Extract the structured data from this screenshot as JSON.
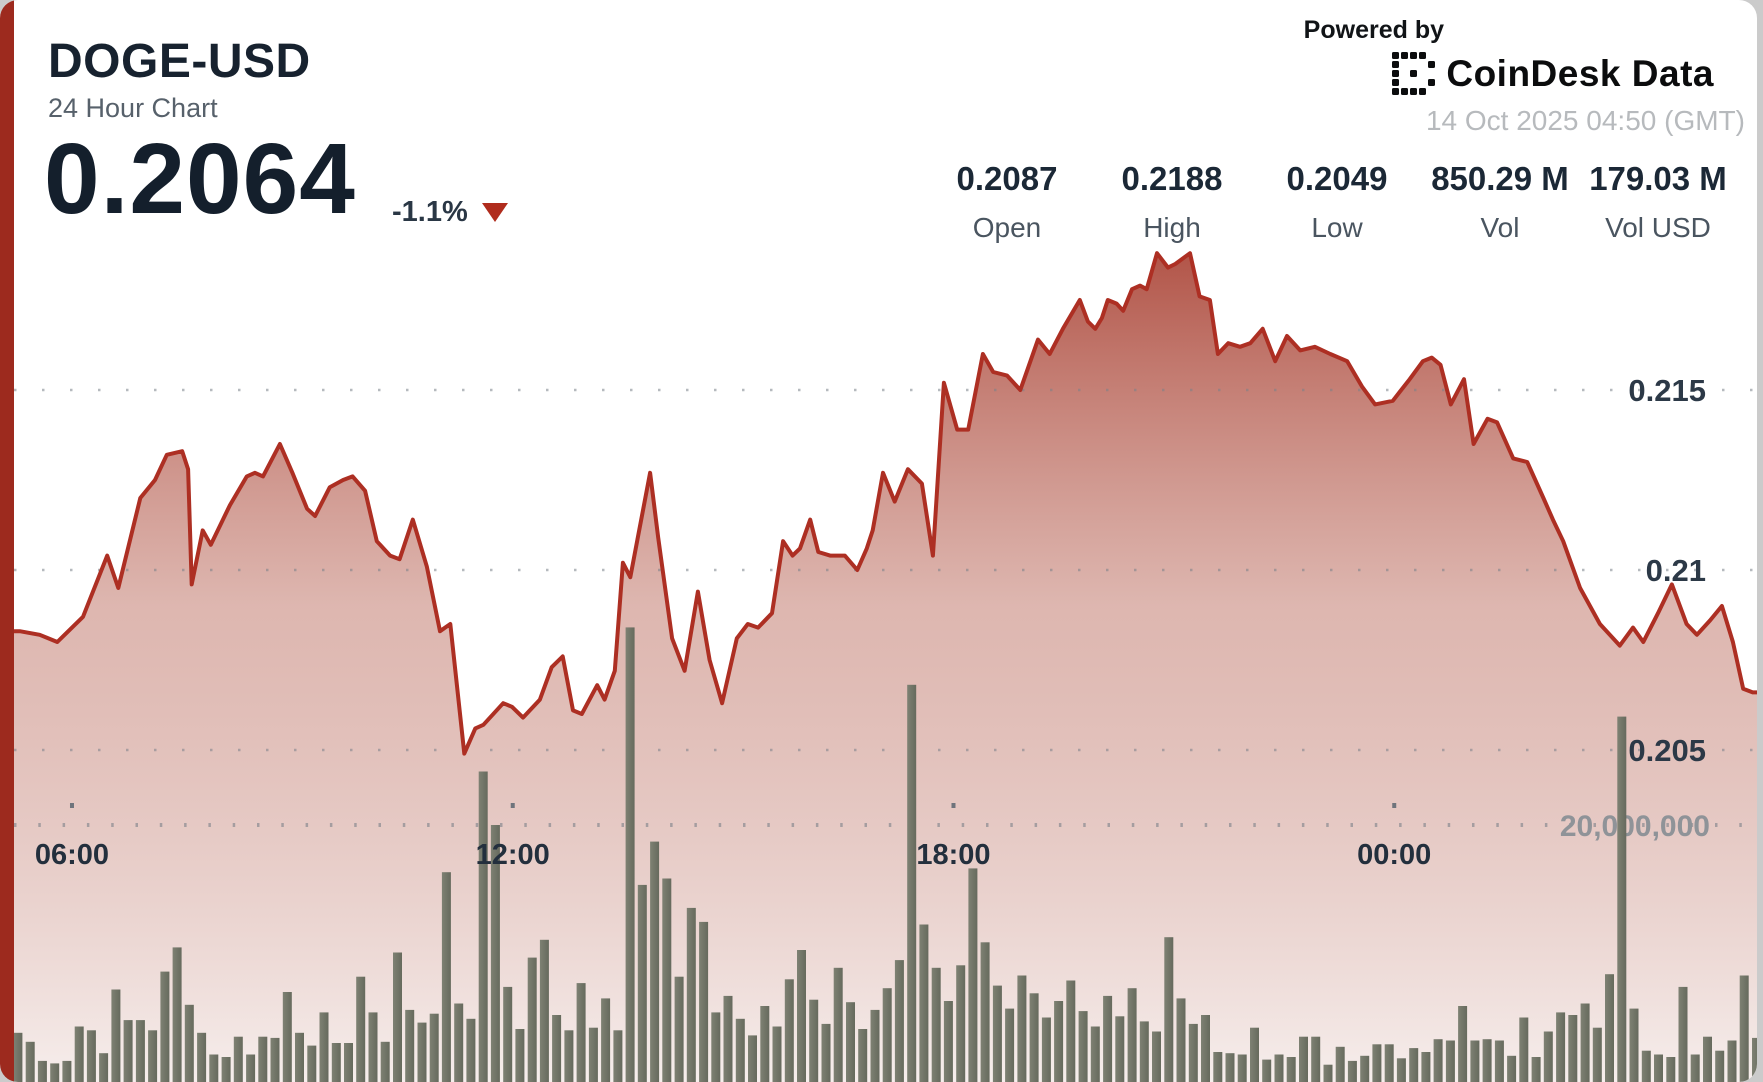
{
  "header": {
    "title": "DOGE-USD",
    "subtitle": "24 Hour Chart",
    "price": "0.2064",
    "change": "-1.1%"
  },
  "branding": {
    "powered_by": "Powered by",
    "logo_text": "CoinDesk Data",
    "timestamp": "14 Oct 2025 04:50 (GMT)"
  },
  "stats": {
    "open": {
      "value": "0.2087",
      "label": "Open"
    },
    "high": {
      "value": "0.2188",
      "label": "High"
    },
    "low": {
      "value": "0.2049",
      "label": "Low"
    },
    "vol": {
      "value": "850.29 M",
      "label": "Vol"
    },
    "vol_usd": {
      "value": "179.03 M",
      "label": "Vol USD"
    }
  },
  "colors": {
    "accent_bar": "#9d2a1e",
    "line": "#ad2f23",
    "area_top": "#a63a2c",
    "area_bottom": "#f5ecea",
    "volume_bar": "#6e7165",
    "navy_text": "#17222f",
    "grid_dot": "#798089",
    "axis_label": "#2c3947",
    "volume_label": "#8f9398",
    "down_triangle": "#b02c1d",
    "timestamp_grey": "#b7babd"
  },
  "chart_data": {
    "type": "area",
    "title": "DOGE-USD 24 Hour Chart",
    "legend": "none",
    "grid": "dotted-horizontal",
    "x_axis": {
      "start_hour": 5.02,
      "end_hour": 29.02,
      "ticks": [
        {
          "hour": 6,
          "label": "06:00"
        },
        {
          "hour": 12,
          "label": "12:00"
        },
        {
          "hour": 18,
          "label": "18:00"
        },
        {
          "hour": 24,
          "label": "00:00"
        }
      ]
    },
    "price_axis": {
      "side": "right",
      "gridlines": [
        {
          "value": 0.215,
          "label": "0.215"
        },
        {
          "value": 0.21,
          "label": "0.21"
        },
        {
          "value": 0.205,
          "label": "0.205"
        }
      ]
    },
    "volume_axis": {
      "gridline_value": 20000000,
      "gridline_label": "20,000,000"
    },
    "ohlc": {
      "open": 0.2087,
      "high": 0.2188,
      "low": 0.2049,
      "last": 0.2064,
      "change_pct": -1.1,
      "volume_m": 850.29,
      "volume_usd_m": 179.03
    },
    "price_series": [
      [
        5.02,
        0.2083
      ],
      [
        5.29,
        0.2083
      ],
      [
        5.56,
        0.2082
      ],
      [
        5.8,
        0.208
      ],
      [
        6.15,
        0.2087
      ],
      [
        6.48,
        0.2104
      ],
      [
        6.63,
        0.2095
      ],
      [
        6.93,
        0.212
      ],
      [
        7.13,
        0.2125
      ],
      [
        7.29,
        0.2132
      ],
      [
        7.5,
        0.2133
      ],
      [
        7.58,
        0.2128
      ],
      [
        7.63,
        0.2096
      ],
      [
        7.78,
        0.2111
      ],
      [
        7.89,
        0.2107
      ],
      [
        8.15,
        0.2118
      ],
      [
        8.38,
        0.2126
      ],
      [
        8.49,
        0.2127
      ],
      [
        8.6,
        0.2126
      ],
      [
        8.83,
        0.2135
      ],
      [
        9.0,
        0.2127
      ],
      [
        9.2,
        0.2117
      ],
      [
        9.31,
        0.2115
      ],
      [
        9.51,
        0.2123
      ],
      [
        9.69,
        0.2125
      ],
      [
        9.82,
        0.2126
      ],
      [
        9.99,
        0.2122
      ],
      [
        10.15,
        0.2108
      ],
      [
        10.33,
        0.2104
      ],
      [
        10.46,
        0.2103
      ],
      [
        10.64,
        0.2114
      ],
      [
        10.83,
        0.2101
      ],
      [
        11.01,
        0.2083
      ],
      [
        11.15,
        0.2085
      ],
      [
        11.34,
        0.2049
      ],
      [
        11.49,
        0.2056
      ],
      [
        11.6,
        0.2057
      ],
      [
        11.87,
        0.2063
      ],
      [
        11.99,
        0.2062
      ],
      [
        12.14,
        0.2059
      ],
      [
        12.37,
        0.2064
      ],
      [
        12.53,
        0.2073
      ],
      [
        12.68,
        0.2076
      ],
      [
        12.82,
        0.2061
      ],
      [
        12.94,
        0.206
      ],
      [
        13.15,
        0.2068
      ],
      [
        13.25,
        0.2064
      ],
      [
        13.39,
        0.2072
      ],
      [
        13.5,
        0.2102
      ],
      [
        13.6,
        0.2098
      ],
      [
        13.87,
        0.2127
      ],
      [
        13.98,
        0.2109
      ],
      [
        14.17,
        0.2081
      ],
      [
        14.34,
        0.2072
      ],
      [
        14.52,
        0.2094
      ],
      [
        14.68,
        0.2075
      ],
      [
        14.85,
        0.2063
      ],
      [
        15.05,
        0.2081
      ],
      [
        15.2,
        0.2085
      ],
      [
        15.34,
        0.2084
      ],
      [
        15.53,
        0.2088
      ],
      [
        15.68,
        0.2108
      ],
      [
        15.81,
        0.2104
      ],
      [
        15.91,
        0.2106
      ],
      [
        16.05,
        0.2114
      ],
      [
        16.16,
        0.2105
      ],
      [
        16.32,
        0.2104
      ],
      [
        16.52,
        0.2104
      ],
      [
        16.69,
        0.21
      ],
      [
        16.82,
        0.2106
      ],
      [
        16.9,
        0.2111
      ],
      [
        17.04,
        0.2127
      ],
      [
        17.2,
        0.2119
      ],
      [
        17.38,
        0.2128
      ],
      [
        17.57,
        0.2124
      ],
      [
        17.72,
        0.2104
      ],
      [
        17.87,
        0.2152
      ],
      [
        18.05,
        0.2139
      ],
      [
        18.2,
        0.2139
      ],
      [
        18.4,
        0.216
      ],
      [
        18.54,
        0.2155
      ],
      [
        18.73,
        0.2154
      ],
      [
        18.91,
        0.215
      ],
      [
        19.15,
        0.2164
      ],
      [
        19.31,
        0.216
      ],
      [
        19.49,
        0.2167
      ],
      [
        19.72,
        0.2175
      ],
      [
        19.83,
        0.2169
      ],
      [
        19.93,
        0.2167
      ],
      [
        20.02,
        0.217
      ],
      [
        20.1,
        0.2175
      ],
      [
        20.22,
        0.2174
      ],
      [
        20.31,
        0.2172
      ],
      [
        20.43,
        0.2178
      ],
      [
        20.54,
        0.2179
      ],
      [
        20.63,
        0.2178
      ],
      [
        20.77,
        0.2188
      ],
      [
        20.92,
        0.2184
      ],
      [
        21.02,
        0.2185
      ],
      [
        21.22,
        0.2188
      ],
      [
        21.35,
        0.2176
      ],
      [
        21.49,
        0.2175
      ],
      [
        21.6,
        0.216
      ],
      [
        21.74,
        0.2163
      ],
      [
        21.9,
        0.2162
      ],
      [
        22.04,
        0.2163
      ],
      [
        22.21,
        0.2167
      ],
      [
        22.38,
        0.2158
      ],
      [
        22.54,
        0.2165
      ],
      [
        22.72,
        0.2161
      ],
      [
        22.92,
        0.2162
      ],
      [
        23.13,
        0.216
      ],
      [
        23.36,
        0.2158
      ],
      [
        23.56,
        0.2151
      ],
      [
        23.74,
        0.2146
      ],
      [
        23.98,
        0.2147
      ],
      [
        24.21,
        0.2153
      ],
      [
        24.39,
        0.2158
      ],
      [
        24.51,
        0.2159
      ],
      [
        24.63,
        0.2157
      ],
      [
        24.77,
        0.2146
      ],
      [
        24.95,
        0.2153
      ],
      [
        25.08,
        0.2135
      ],
      [
        25.27,
        0.2142
      ],
      [
        25.4,
        0.2141
      ],
      [
        25.62,
        0.2131
      ],
      [
        25.81,
        0.213
      ],
      [
        26.03,
        0.212
      ],
      [
        26.16,
        0.2114
      ],
      [
        26.3,
        0.2108
      ],
      [
        26.53,
        0.2095
      ],
      [
        26.8,
        0.2085
      ],
      [
        27.07,
        0.2079
      ],
      [
        27.25,
        0.2084
      ],
      [
        27.39,
        0.208
      ],
      [
        27.59,
        0.2088
      ],
      [
        27.78,
        0.2096
      ],
      [
        27.98,
        0.2085
      ],
      [
        28.12,
        0.2082
      ],
      [
        28.3,
        0.2086
      ],
      [
        28.46,
        0.209
      ],
      [
        28.61,
        0.208
      ],
      [
        28.75,
        0.2067
      ],
      [
        28.88,
        0.2066
      ],
      [
        29.02,
        0.2066
      ]
    ],
    "volume_series_millions": [
      2.5,
      3.7,
      3.0,
      1.5,
      1.3,
      1.5,
      4.2,
      3.9,
      2.1,
      7.1,
      4.7,
      4.7,
      3.9,
      8.5,
      10.4,
      5.9,
      3.7,
      2.0,
      1.8,
      3.4,
      2.0,
      3.4,
      3.3,
      6.9,
      3.7,
      2.7,
      5.3,
      2.9,
      2.9,
      8.1,
      5.3,
      3.0,
      10.0,
      5.5,
      4.5,
      5.2,
      16.3,
      6.0,
      4.8,
      24.2,
      20.0,
      7.3,
      4.0,
      9.6,
      11.0,
      5.1,
      3.9,
      7.6,
      4.1,
      6.4,
      3.9,
      35.5,
      15.3,
      18.7,
      15.8,
      8.1,
      13.5,
      12.4,
      5.3,
      6.6,
      4.8,
      3.5,
      5.8,
      4.2,
      7.9,
      10.2,
      6.3,
      4.4,
      8.8,
      6.1,
      4.0,
      5.5,
      7.2,
      9.4,
      31.0,
      12.2,
      8.8,
      6.2,
      9.0,
      16.6,
      10.8,
      7.4,
      5.6,
      8.2,
      6.8,
      4.9,
      6.2,
      7.8,
      5.4,
      4.2,
      6.6,
      5.0,
      7.2,
      4.6,
      3.8,
      11.2,
      6.4,
      4.4,
      5.1,
      2.2,
      2.1,
      2.0,
      4.1,
      1.6,
      2.0,
      1.8,
      3.4,
      3.4,
      1.2,
      2.6,
      1.5,
      1.9,
      2.8,
      2.8,
      1.7,
      2.5,
      2.2,
      3.2,
      3.1,
      5.8,
      3.1,
      3.2,
      3.1,
      1.9,
      4.9,
      1.8,
      3.8,
      5.3,
      5.1,
      6.0,
      4.1,
      8.3,
      28.5,
      5.6,
      2.3,
      2.0,
      1.8,
      7.3,
      2.0,
      3.4,
      2.3,
      3.1,
      8.2,
      3.3
    ]
  }
}
